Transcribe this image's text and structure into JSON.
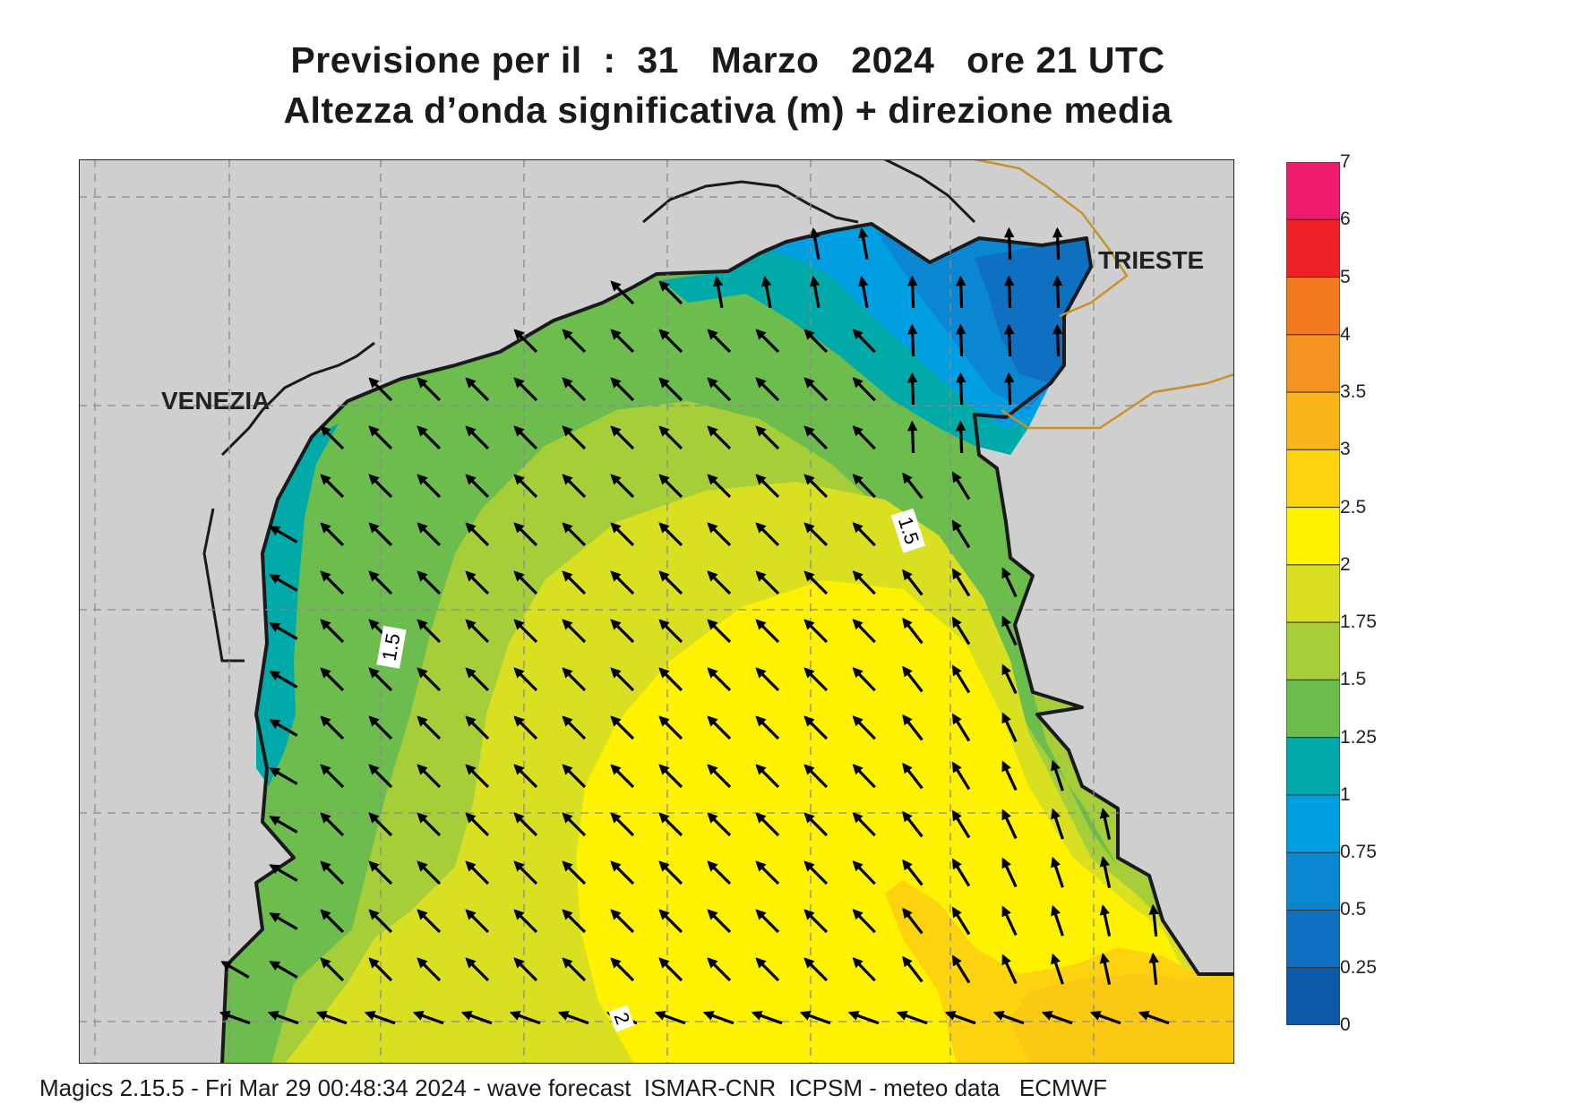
{
  "title": {
    "line1": "Previsione per il  :  31   Marzo   2024   ore 21 UTC",
    "line2": "Altezza d’onda significativa (m) + direzione media"
  },
  "map": {
    "cities": {
      "venezia": "VENEZIA",
      "trieste": "TRIESTE"
    },
    "contour_labels": [
      "1.5",
      "1.5",
      "2"
    ],
    "land_color": "#cfcfcf",
    "coast_color": "#1a1a1a",
    "border_color": "#c8922a",
    "grid_color": "#8a8a8a"
  },
  "legend": {
    "labels": [
      "7",
      "6",
      "5",
      "4",
      "3.5",
      "3",
      "2.5",
      "2",
      "1.75",
      "1.5",
      "1.25",
      "1",
      "0.75",
      "0.5",
      "0.25",
      "0"
    ],
    "colors": [
      "#f01a6e",
      "#ec2026",
      "#f37a21",
      "#f69320",
      "#fbb31a",
      "#fdd20e",
      "#fef200",
      "#d9e021",
      "#a6ce39",
      "#6cbd4e",
      "#00aaa8",
      "#009ee2",
      "#0a86d2",
      "#0f6fc0",
      "#0f5aa8"
    ]
  },
  "footer": "Magics 2.15.5 - Fri Mar 29 00:48:34 2024 - wave forecast  ISMAR-CNR  ICPSM - meteo data   ECMWF"
}
